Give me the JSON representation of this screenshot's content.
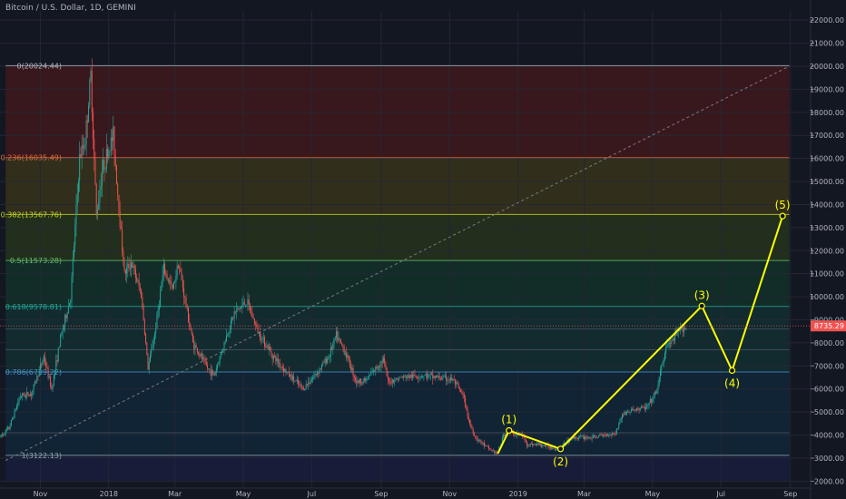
{
  "chart_data": {
    "type": "candlestick",
    "title": "Bitcoin / U.S. Dollar, 1D, GEMINI",
    "xlabel": "",
    "ylabel": "",
    "x_range": [
      "2017-09-26",
      "2019-09-19"
    ],
    "y_range": [
      1700,
      22400
    ],
    "y_ticks": [
      2000,
      3000,
      4000,
      5000,
      6000,
      7000,
      8000,
      9000,
      10000,
      11000,
      12000,
      13000,
      14000,
      15000,
      16000,
      17000,
      18000,
      19000,
      20000,
      21000,
      22000
    ],
    "y_tick_labels": [
      "2000.00",
      "3000.00",
      "4000.00",
      "5000.00",
      "6000.00",
      "7000.00",
      "8000.00",
      "9000.00",
      "10000.00",
      "11000.00",
      "12000.00",
      "13000.00",
      "14000.00",
      "15000.00",
      "16000.00",
      "17000.00",
      "18000.00",
      "19000.00",
      "20000.00",
      "21000.00",
      "22000.00"
    ],
    "x_ticks": [
      {
        "date": "2017-11-01",
        "label": "Nov"
      },
      {
        "date": "2018-01-01",
        "label": "2018"
      },
      {
        "date": "2018-03-01",
        "label": "Mar"
      },
      {
        "date": "2018-05-01",
        "label": "May"
      },
      {
        "date": "2018-07-01",
        "label": "Jul"
      },
      {
        "date": "2018-09-01",
        "label": "Sep"
      },
      {
        "date": "2018-11-01",
        "label": "Nov"
      },
      {
        "date": "2019-01-01",
        "label": "2019"
      },
      {
        "date": "2019-03-01",
        "label": "Mar"
      },
      {
        "date": "2019-05-01",
        "label": "May"
      },
      {
        "date": "2019-07-01",
        "label": "Jul"
      },
      {
        "date": "2019-09-01",
        "label": "Sep"
      }
    ],
    "price_path": [
      [
        "2017-09-26",
        3900
      ],
      [
        "2017-10-05",
        4300
      ],
      [
        "2017-10-15",
        5700
      ],
      [
        "2017-10-25",
        5800
      ],
      [
        "2017-11-05",
        7400
      ],
      [
        "2017-11-12",
        6000
      ],
      [
        "2017-11-20",
        8200
      ],
      [
        "2017-11-29",
        10000
      ],
      [
        "2017-12-07",
        16000
      ],
      [
        "2017-12-12",
        16800
      ],
      [
        "2017-12-17",
        19600
      ],
      [
        "2017-12-22",
        13500
      ],
      [
        "2017-12-27",
        15500
      ],
      [
        "2018-01-06",
        17000
      ],
      [
        "2018-01-10",
        14500
      ],
      [
        "2018-01-16",
        11000
      ],
      [
        "2018-01-22",
        11500
      ],
      [
        "2018-01-31",
        10100
      ],
      [
        "2018-02-06",
        6900
      ],
      [
        "2018-02-12",
        8400
      ],
      [
        "2018-02-20",
        11200
      ],
      [
        "2018-02-28",
        10300
      ],
      [
        "2018-03-05",
        11500
      ],
      [
        "2018-03-18",
        8000
      ],
      [
        "2018-03-31",
        6900
      ],
      [
        "2018-04-06",
        6600
      ],
      [
        "2018-04-15",
        8000
      ],
      [
        "2018-04-24",
        9300
      ],
      [
        "2018-05-05",
        9800
      ],
      [
        "2018-05-15",
        8500
      ],
      [
        "2018-05-29",
        7400
      ],
      [
        "2018-06-10",
        6700
      ],
      [
        "2018-06-24",
        6000
      ],
      [
        "2018-07-05",
        6600
      ],
      [
        "2018-07-17",
        7400
      ],
      [
        "2018-07-24",
        8300
      ],
      [
        "2018-08-01",
        7600
      ],
      [
        "2018-08-11",
        6300
      ],
      [
        "2018-08-20",
        6400
      ],
      [
        "2018-09-04",
        7300
      ],
      [
        "2018-09-08",
        6300
      ],
      [
        "2018-09-20",
        6500
      ],
      [
        "2018-10-10",
        6600
      ],
      [
        "2018-11-05",
        6400
      ],
      [
        "2018-11-14",
        5700
      ],
      [
        "2018-11-20",
        4500
      ],
      [
        "2018-11-25",
        3900
      ],
      [
        "2018-12-07",
        3400
      ],
      [
        "2018-12-15",
        3200
      ],
      [
        "2018-12-20",
        4000
      ],
      [
        "2018-12-24",
        4100
      ],
      [
        "2019-01-06",
        4000
      ],
      [
        "2019-01-10",
        3600
      ],
      [
        "2019-01-20",
        3600
      ],
      [
        "2019-02-07",
        3400
      ],
      [
        "2019-02-20",
        3900
      ],
      [
        "2019-03-10",
        3900
      ],
      [
        "2019-03-30",
        4100
      ],
      [
        "2019-04-05",
        4900
      ],
      [
        "2019-04-15",
        5100
      ],
      [
        "2019-04-27",
        5200
      ],
      [
        "2019-05-05",
        5800
      ],
      [
        "2019-05-14",
        7800
      ],
      [
        "2019-05-20",
        8100
      ],
      [
        "2019-05-29",
        8700
      ],
      [
        "2019-06-01",
        8600
      ]
    ],
    "last_price": 8735.29,
    "last_price_label": "8735.29",
    "fib_levels": [
      {
        "ratio": "0",
        "value": 20024.44,
        "label": "0(20024.44)"
      },
      {
        "ratio": "0.236",
        "value": 16035.49,
        "label": "0.236(16035.49)"
      },
      {
        "ratio": "0.382",
        "value": 13567.76,
        "label": "0.382(13567.76)"
      },
      {
        "ratio": "0.5",
        "value": 11573.28,
        "label": "0.5(11573.28)"
      },
      {
        "ratio": "0.618",
        "value": 9578.81,
        "label": "0.618(9578.81)"
      },
      {
        "ratio": "0.786",
        "value": 6739.22,
        "label": "0.786(6739.22)"
      },
      {
        "ratio": "1",
        "value": 3122.13,
        "label": "1(3122.13)"
      }
    ],
    "fib_extra_levels": [
      8600,
      7700,
      4100
    ],
    "trend_line": [
      [
        "2017-10-01",
        2900
      ],
      [
        "2019-08-31",
        20000
      ]
    ],
    "waves": [
      {
        "label": "(1)",
        "date": "2018-12-24",
        "value": 4200
      },
      {
        "label": "(2)",
        "date": "2019-02-08",
        "value": 3400
      },
      {
        "label": "(3)",
        "date": "2019-06-14",
        "value": 9600
      },
      {
        "label": "(4)",
        "date": "2019-07-11",
        "value": 6800
      },
      {
        "label": "(5)",
        "date": "2019-08-25",
        "value": 13500
      }
    ],
    "wave_start": {
      "date": "2018-12-14",
      "value": 3200
    },
    "colors": {
      "background": "#131722",
      "grid": "#242733",
      "up": "#26a69a",
      "down": "#ef5350",
      "wave": "#ffff00",
      "last_price": "#ef5350"
    }
  }
}
